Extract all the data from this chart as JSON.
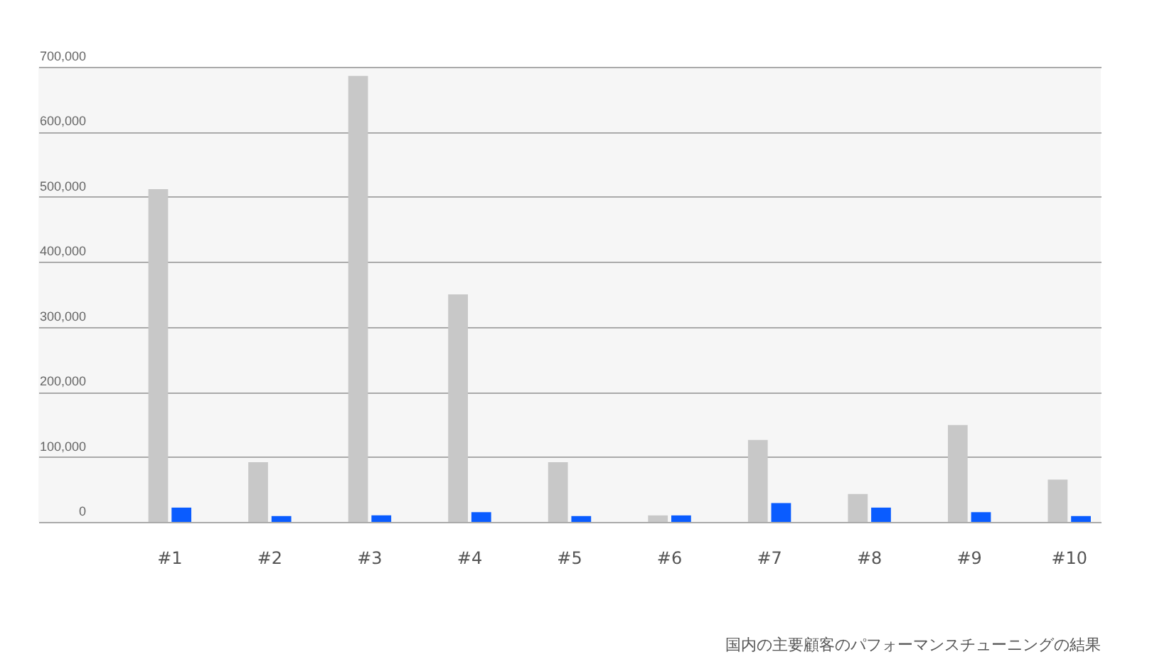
{
  "chart_data": {
    "type": "bar",
    "categories": [
      "#1",
      "#2",
      "#3",
      "#4",
      "#5",
      "#6",
      "#7",
      "#8",
      "#9",
      "#10"
    ],
    "series": [
      {
        "color": "#c8c8c8",
        "values": [
          512000,
          92000,
          686000,
          350000,
          92000,
          10000,
          126000,
          43000,
          149000,
          65000
        ]
      },
      {
        "color": "#0a5cff",
        "values": [
          22000,
          9000,
          10000,
          15000,
          9000,
          10000,
          29000,
          22000,
          15000,
          9000
        ]
      }
    ],
    "ylim": [
      0,
      700000
    ],
    "yticks": [
      0,
      {
        "value": 100000,
        "label": "100,000"
      },
      {
        "value": 200000,
        "label": "200,000"
      },
      {
        "value": 300000,
        "label": "300,000"
      },
      {
        "value": 400000,
        "label": "400,000"
      },
      {
        "value": 500000,
        "label": "500,000"
      },
      {
        "value": 600000,
        "label": "600,000"
      },
      {
        "value": 700000,
        "label": "700,000"
      }
    ],
    "grid": "y",
    "annotations": [
      "国内の主要顧客のパフォーマンスチューニングの結果"
    ]
  }
}
